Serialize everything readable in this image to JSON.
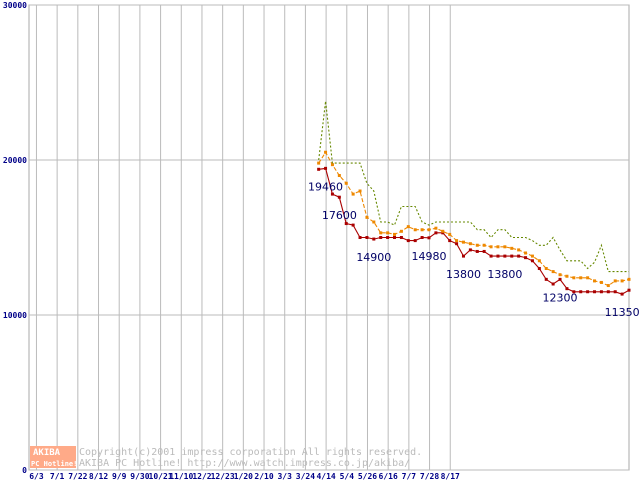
{
  "chart_data": {
    "type": "line",
    "title": "",
    "xlabel": "",
    "ylabel": "",
    "ylim": [
      0,
      30000
    ],
    "yticks": [
      "0",
      "10000",
      "20000",
      "30000"
    ],
    "x_tick_labels": [
      "6/3",
      "7/1",
      "7/22",
      "8/12",
      "9/9",
      "9/30",
      "10/21",
      "11/10",
      "12/2",
      "12/23",
      "1/20",
      "2/10",
      "3/3",
      "3/24",
      "4/14",
      "5/4",
      "5/26",
      "6/16",
      "7/7",
      "7/28",
      "8/17"
    ],
    "grid": true,
    "legend": "none",
    "series": [
      {
        "color": "#aa0000",
        "style": "solid-with-markers",
        "values": [
          null,
          null,
          null,
          null,
          null,
          null,
          null,
          null,
          null,
          null,
          null,
          null,
          null,
          null,
          null,
          null,
          null,
          null,
          null,
          null,
          null,
          null,
          null,
          null,
          null,
          null,
          null,
          null,
          null,
          null,
          null,
          null,
          null,
          null,
          null,
          null,
          null,
          null,
          null,
          null,
          null,
          null,
          19400,
          19460,
          17800,
          17600,
          15900,
          15800,
          15000,
          15000,
          14900,
          15000,
          15000,
          15000,
          15000,
          14800,
          14800,
          15000,
          14980,
          15300,
          15300,
          14800,
          14600,
          13800,
          14200,
          14100,
          14100,
          13800,
          13800,
          13800,
          13800,
          13800,
          13700,
          13500,
          13000,
          12300,
          12000,
          12300,
          11700,
          11500,
          11500,
          11500,
          11500,
          11500,
          11500,
          11500,
          11350,
          11600
        ]
      },
      {
        "color": "#ee8800",
        "style": "dashed-with-markers",
        "values": [
          null,
          null,
          null,
          null,
          null,
          null,
          null,
          null,
          null,
          null,
          null,
          null,
          null,
          null,
          null,
          null,
          null,
          null,
          null,
          null,
          null,
          null,
          null,
          null,
          null,
          null,
          null,
          null,
          null,
          null,
          null,
          null,
          null,
          null,
          null,
          null,
          null,
          null,
          null,
          null,
          null,
          null,
          19800,
          20500,
          19700,
          19000,
          18500,
          17800,
          18000,
          16300,
          16000,
          15300,
          15300,
          15200,
          15400,
          15700,
          15500,
          15500,
          15500,
          15600,
          15400,
          15200,
          14800,
          14700,
          14600,
          14500,
          14500,
          14400,
          14400,
          14400,
          14300,
          14200,
          14000,
          13800,
          13500,
          13000,
          12800,
          12600,
          12500,
          12400,
          12400,
          12400,
          12200,
          12100,
          11900,
          12200,
          12200,
          12300
        ]
      },
      {
        "color": "#668800",
        "style": "dotted",
        "values": [
          null,
          null,
          null,
          null,
          null,
          null,
          null,
          null,
          null,
          null,
          null,
          null,
          null,
          null,
          null,
          null,
          null,
          null,
          null,
          null,
          null,
          null,
          null,
          null,
          null,
          null,
          null,
          null,
          null,
          null,
          null,
          null,
          null,
          null,
          null,
          null,
          null,
          null,
          null,
          null,
          null,
          null,
          20000,
          23800,
          19800,
          19800,
          19800,
          19800,
          19800,
          18500,
          18000,
          16000,
          16000,
          15800,
          17000,
          17000,
          17000,
          16000,
          15800,
          16000,
          16000,
          16000,
          16000,
          16000,
          16000,
          15500,
          15500,
          15000,
          15500,
          15500,
          15000,
          15000,
          15000,
          14800,
          14500,
          14500,
          15000,
          14200,
          13500,
          13500,
          13500,
          13000,
          13400,
          14500,
          12800,
          12800,
          12800,
          12800
        ]
      }
    ],
    "data_labels": [
      {
        "text": "19460",
        "series": 0,
        "index": 43
      },
      {
        "text": "17600",
        "series": 0,
        "index": 45
      },
      {
        "text": "14900",
        "series": 0,
        "index": 50
      },
      {
        "text": "14980",
        "series": 0,
        "index": 58
      },
      {
        "text": "13800",
        "series": 0,
        "index": 63
      },
      {
        "text": "13800",
        "series": 0,
        "index": 69
      },
      {
        "text": "12300",
        "series": 0,
        "index": 77
      },
      {
        "text": "11350",
        "series": 0,
        "index": 86
      }
    ]
  },
  "watermark": {
    "line1": "Copyright(c)2001 impress corporation All rights reserved.",
    "line2": "AKIBA PC Hotline!  http://www.watch.impress.co.jp/akiba/",
    "logo_top": "AKIBA",
    "logo_bottom": "PC Hotline!",
    "logo_color": "#ffaa88"
  }
}
